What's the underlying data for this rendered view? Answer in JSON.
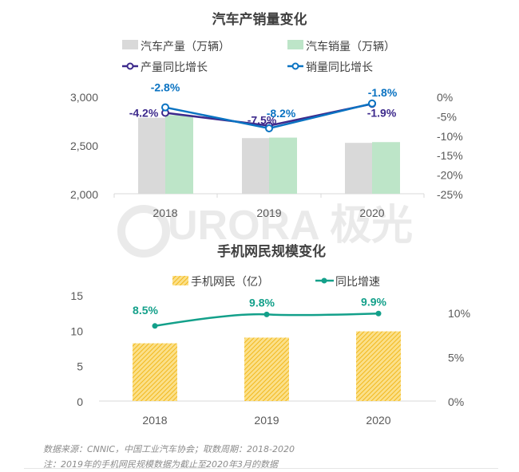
{
  "watermark": "AURORA 极光",
  "chart_data": [
    {
      "type": "bar",
      "title": "汽车产销量变化",
      "categories": [
        "2018",
        "2019",
        "2020"
      ],
      "series": [
        {
          "name": "汽车产量（万辆）",
          "kind": "bar",
          "axis": "left",
          "color": "#d9d9d9",
          "values": [
            2781,
            2572,
            2523
          ]
        },
        {
          "name": "汽车销量（万辆）",
          "kind": "bar",
          "axis": "left",
          "color": "#bde5c8",
          "values": [
            2808,
            2577,
            2531
          ]
        },
        {
          "name": "产量同比增长",
          "kind": "line",
          "axis": "right",
          "color": "#3d2a8c",
          "values": [
            -4.2,
            -7.5,
            -1.9
          ],
          "labels": [
            "-4.2%",
            "-7.5%",
            "-1.9%"
          ]
        },
        {
          "name": "销量同比增长",
          "kind": "line",
          "axis": "right",
          "color": "#0a73c2",
          "values": [
            -2.8,
            -8.2,
            -1.8
          ],
          "labels": [
            "-2.8%",
            "-8.2%",
            "-1.8%"
          ]
        }
      ],
      "ylim": [
        2000,
        3000
      ],
      "yticks": [
        "2,000",
        "2,500",
        "3,000"
      ],
      "y2lim": [
        -25,
        0
      ],
      "y2ticks": [
        "0%",
        "-5%",
        "-10%",
        "-15%",
        "-20%",
        "-25%"
      ],
      "legend": "top"
    },
    {
      "type": "bar",
      "title": "手机网民规模变化",
      "categories": [
        "2018",
        "2019",
        "2020"
      ],
      "series": [
        {
          "name": "手机网民（亿）",
          "kind": "bar",
          "axis": "left",
          "color": "#f5c333",
          "values": [
            8.17,
            8.97,
            9.86
          ]
        },
        {
          "name": "同比增速",
          "kind": "line",
          "axis": "right",
          "color": "#13a08a",
          "values": [
            8.5,
            9.8,
            9.9
          ],
          "labels": [
            "8.5%",
            "9.8%",
            "9.9%"
          ]
        }
      ],
      "ylim": [
        0,
        15
      ],
      "yticks": [
        "0",
        "5",
        "10",
        "15"
      ],
      "y2lim": [
        0,
        12
      ],
      "y2ticks": [
        "0%",
        "5%",
        "10%"
      ],
      "legend": "top"
    }
  ],
  "notes": {
    "source": "数据来源：CNNIC，中国工业汽车协会；取数周期：2018-2020",
    "note": "注：2019年的手机网民规模数据为截止至2020年3月的数据"
  }
}
